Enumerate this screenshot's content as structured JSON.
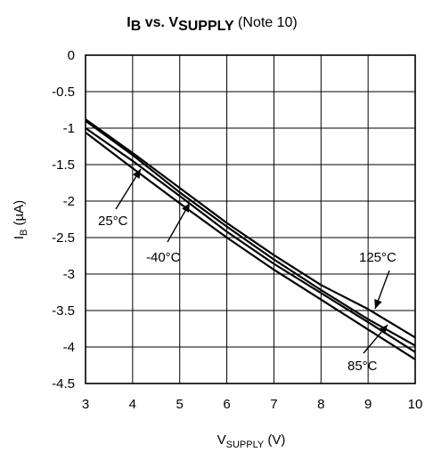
{
  "chart_data": {
    "type": "line",
    "title": {
      "main": "I",
      "main_sub": "B",
      "vs": " vs. V",
      "vs_sub": "SUPPLY",
      "note": " (Note 10)"
    },
    "xlabel": {
      "main": "V",
      "sub": "SUPPLY",
      "unit": " (V)"
    },
    "ylabel": {
      "main": "I",
      "sub": "B",
      "unit": " (µA)"
    },
    "xlim": [
      3,
      10
    ],
    "ylim": [
      -4.5,
      0
    ],
    "xticks": [
      "3",
      "4",
      "5",
      "6",
      "7",
      "8",
      "9",
      "10"
    ],
    "yticks": [
      "0",
      "-0.5",
      "-1",
      "-1.5",
      "-2",
      "-2.5",
      "-3",
      "-3.5",
      "-4",
      "-4.5"
    ],
    "grid": true,
    "series": [
      {
        "name": "125°C",
        "x": [
          3,
          4,
          5,
          6,
          7,
          8,
          9,
          10
        ],
        "y": [
          -0.88,
          -1.34,
          -1.82,
          -2.3,
          -2.74,
          -3.15,
          -3.48,
          -3.87
        ]
      },
      {
        "name": "25°C",
        "x": [
          3,
          4,
          5,
          6,
          7,
          8,
          9,
          10
        ],
        "y": [
          -0.9,
          -1.37,
          -1.88,
          -2.35,
          -2.8,
          -3.22,
          -3.62,
          -3.98
        ]
      },
      {
        "name": "-40°C",
        "x": [
          3,
          4,
          5,
          6,
          7,
          8,
          9,
          10
        ],
        "y": [
          -1.0,
          -1.45,
          -1.93,
          -2.42,
          -2.86,
          -3.26,
          -3.66,
          -4.07
        ]
      },
      {
        "name": "85°C",
        "x": [
          3,
          4,
          5,
          6,
          7,
          8,
          9,
          10
        ],
        "y": [
          -1.06,
          -1.55,
          -2.03,
          -2.5,
          -2.94,
          -3.35,
          -3.76,
          -4.17
        ]
      }
    ],
    "annotations": [
      {
        "text": "25°C",
        "series": "25°C"
      },
      {
        "text": "-40°C",
        "series": "-40°C"
      },
      {
        "text": "125°C",
        "series": "125°C"
      },
      {
        "text": "85°C",
        "series": "85°C"
      }
    ]
  }
}
